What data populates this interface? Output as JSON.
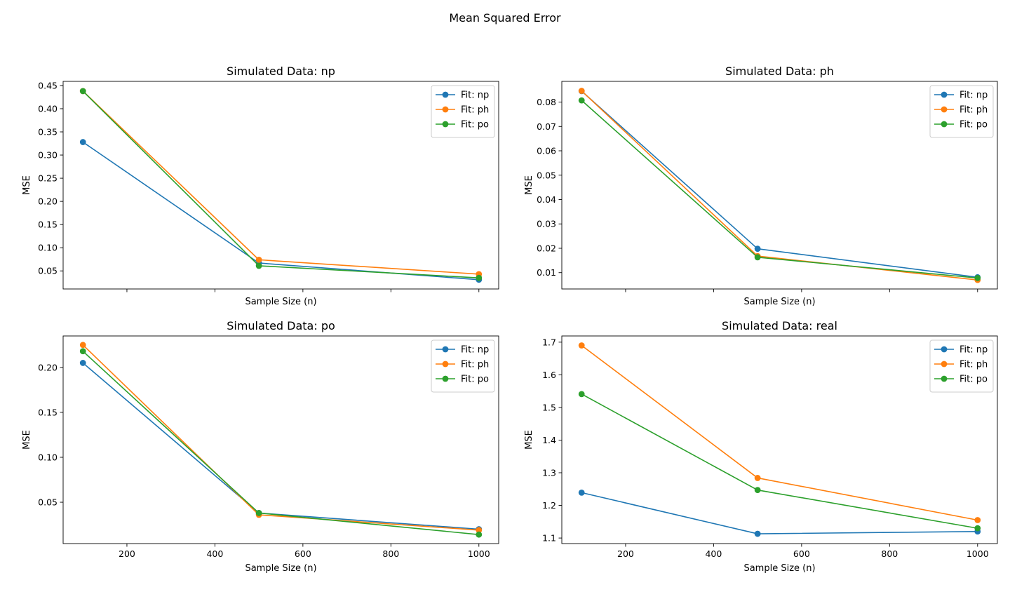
{
  "figure": {
    "title": "Mean Squared Error"
  },
  "chart_data": [
    {
      "type": "line",
      "title": "Simulated Data: np",
      "xlabel": "Sample Size (n)",
      "ylabel": "MSE",
      "x": [
        100,
        500,
        1000
      ],
      "xlim": [
        55,
        1045
      ],
      "ylim": [
        0.011,
        0.459
      ],
      "xticks": [
        200,
        400,
        600,
        800,
        1000
      ],
      "xticklabels_visible": false,
      "yticks": [
        0.05,
        0.1,
        0.15,
        0.2,
        0.25,
        0.3,
        0.35,
        0.4,
        0.45
      ],
      "yticklabels": [
        "0.05",
        "0.10",
        "0.15",
        "0.20",
        "0.25",
        "0.30",
        "0.35",
        "0.40",
        "0.45"
      ],
      "grid": false,
      "legend": "top-right",
      "series": [
        {
          "name": "Fit: np",
          "color": "#1f77b4",
          "values": [
            0.328,
            0.067,
            0.031
          ]
        },
        {
          "name": "Fit: ph",
          "color": "#ff7f0e",
          "values": [
            0.438,
            0.074,
            0.043
          ]
        },
        {
          "name": "Fit: po",
          "color": "#2ca02c",
          "values": [
            0.438,
            0.061,
            0.035
          ]
        }
      ]
    },
    {
      "type": "line",
      "title": "Simulated Data: ph",
      "xlabel": "Sample Size (n)",
      "ylabel": "MSE",
      "x": [
        100,
        500,
        1000
      ],
      "xlim": [
        55,
        1045
      ],
      "ylim": [
        0.0033,
        0.0885
      ],
      "xticks": [
        200,
        400,
        600,
        800,
        1000
      ],
      "xticklabels_visible": false,
      "yticks": [
        0.01,
        0.02,
        0.03,
        0.04,
        0.05,
        0.06,
        0.07,
        0.08
      ],
      "yticklabels": [
        "0.01",
        "0.02",
        "0.03",
        "0.04",
        "0.05",
        "0.06",
        "0.07",
        "0.08"
      ],
      "grid": false,
      "legend": "top-right",
      "series": [
        {
          "name": "Fit: np",
          "color": "#1f77b4",
          "values": [
            0.0845,
            0.0198,
            0.0081
          ]
        },
        {
          "name": "Fit: ph",
          "color": "#ff7f0e",
          "values": [
            0.0846,
            0.0168,
            0.007
          ]
        },
        {
          "name": "Fit: po",
          "color": "#2ca02c",
          "values": [
            0.0807,
            0.0163,
            0.0078
          ]
        }
      ]
    },
    {
      "type": "line",
      "title": "Simulated Data: po",
      "xlabel": "Sample Size (n)",
      "ylabel": "MSE",
      "x": [
        100,
        500,
        1000
      ],
      "xlim": [
        55,
        1045
      ],
      "ylim": [
        0.004,
        0.235
      ],
      "xticks": [
        200,
        400,
        600,
        800,
        1000
      ],
      "xticklabels": [
        "200",
        "400",
        "600",
        "800",
        "1000"
      ],
      "xticklabels_visible": true,
      "yticks": [
        0.05,
        0.1,
        0.15,
        0.2
      ],
      "yticklabels": [
        "0.05",
        "0.10",
        "0.15",
        "0.20"
      ],
      "grid": false,
      "legend": "top-right",
      "series": [
        {
          "name": "Fit: np",
          "color": "#1f77b4",
          "values": [
            0.205,
            0.038,
            0.02
          ]
        },
        {
          "name": "Fit: ph",
          "color": "#ff7f0e",
          "values": [
            0.225,
            0.036,
            0.019
          ]
        },
        {
          "name": "Fit: po",
          "color": "#2ca02c",
          "values": [
            0.218,
            0.038,
            0.014
          ]
        }
      ]
    },
    {
      "type": "line",
      "title": "Simulated Data: real",
      "xlabel": "Sample Size (n)",
      "ylabel": "MSE",
      "x": [
        100,
        500,
        1000
      ],
      "xlim": [
        55,
        1045
      ],
      "ylim": [
        1.083,
        1.719
      ],
      "xticks": [
        200,
        400,
        600,
        800,
        1000
      ],
      "xticklabels": [
        "200",
        "400",
        "600",
        "800",
        "1000"
      ],
      "xticklabels_visible": true,
      "yticks": [
        1.1,
        1.2,
        1.3,
        1.4,
        1.5,
        1.6,
        1.7
      ],
      "yticklabels": [
        "1.1",
        "1.2",
        "1.3",
        "1.4",
        "1.5",
        "1.6",
        "1.7"
      ],
      "grid": false,
      "legend": "top-right",
      "series": [
        {
          "name": "Fit: np",
          "color": "#1f77b4",
          "values": [
            1.239,
            1.113,
            1.12
          ]
        },
        {
          "name": "Fit: ph",
          "color": "#ff7f0e",
          "values": [
            1.69,
            1.284,
            1.155
          ]
        },
        {
          "name": "Fit: po",
          "color": "#2ca02c",
          "values": [
            1.541,
            1.247,
            1.13
          ]
        }
      ]
    }
  ]
}
